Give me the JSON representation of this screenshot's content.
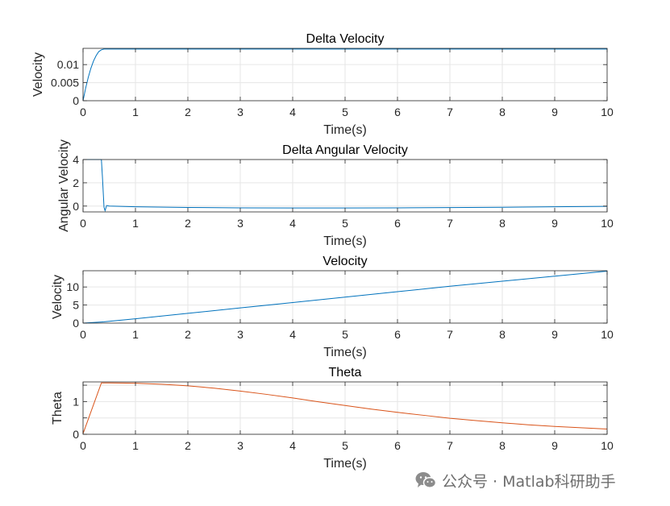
{
  "colors": {
    "blue": "#0072BD",
    "orange": "#D95319",
    "axis": "#262626",
    "grid": "#E6E6E6"
  },
  "watermark": {
    "icon": "wechat-icon",
    "text": "公众号 · Matlab科研助手"
  },
  "chart_data": [
    {
      "type": "line",
      "title": "Delta Velocity",
      "xlabel": "Time(s)",
      "ylabel": "Velocity",
      "xlim": [
        0,
        10
      ],
      "ylim": [
        0,
        0.0145
      ],
      "xticks": [
        0,
        1,
        2,
        3,
        4,
        5,
        6,
        7,
        8,
        9,
        10
      ],
      "xticklabels": [
        "0",
        "1",
        "2",
        "3",
        "4",
        "5",
        "6",
        "7",
        "8",
        "9",
        "10"
      ],
      "yticks": [
        0,
        0.005,
        0.01
      ],
      "yticklabels": [
        "0",
        "0.005",
        "0.01"
      ],
      "grid": true,
      "color": "#0072BD",
      "x": [
        0,
        0.05,
        0.1,
        0.15,
        0.2,
        0.25,
        0.3,
        0.35,
        0.4,
        1,
        2,
        3,
        4,
        5,
        6,
        7,
        8,
        9,
        10
      ],
      "y": [
        0,
        0.0035,
        0.0065,
        0.009,
        0.011,
        0.0125,
        0.0136,
        0.0141,
        0.0143,
        0.0143,
        0.0143,
        0.0143,
        0.0143,
        0.0143,
        0.0143,
        0.0143,
        0.0143,
        0.0143,
        0.0143
      ]
    },
    {
      "type": "line",
      "title": "Delta Angular Velocity",
      "xlabel": "Time(s)",
      "ylabel": "Angular Velocity",
      "xlim": [
        0,
        10
      ],
      "ylim": [
        -0.5,
        4
      ],
      "xticks": [
        0,
        1,
        2,
        3,
        4,
        5,
        6,
        7,
        8,
        9,
        10
      ],
      "xticklabels": [
        "0",
        "1",
        "2",
        "3",
        "4",
        "5",
        "6",
        "7",
        "8",
        "9",
        "10"
      ],
      "yticks": [
        0,
        2,
        4
      ],
      "yticklabels": [
        "0",
        "2",
        "4"
      ],
      "grid": true,
      "color": "#0072BD",
      "x": [
        0,
        0.35,
        0.37,
        0.4,
        0.42,
        0.45,
        0.5,
        1,
        2,
        3,
        4,
        5,
        6,
        7,
        8,
        9,
        10
      ],
      "y": [
        4,
        4,
        2.5,
        -0.1,
        -0.4,
        0.05,
        0.0,
        -0.06,
        -0.12,
        -0.15,
        -0.16,
        -0.16,
        -0.15,
        -0.13,
        -0.1,
        -0.06,
        -0.02
      ]
    },
    {
      "type": "line",
      "title": "Velocity",
      "xlabel": "Time(s)",
      "ylabel": "Velocity",
      "xlim": [
        0,
        10
      ],
      "ylim": [
        0,
        14.5
      ],
      "xticks": [
        0,
        1,
        2,
        3,
        4,
        5,
        6,
        7,
        8,
        9,
        10
      ],
      "xticklabels": [
        "0",
        "1",
        "2",
        "3",
        "4",
        "5",
        "6",
        "7",
        "8",
        "9",
        "10"
      ],
      "yticks": [
        0,
        5,
        10
      ],
      "yticklabels": [
        "0",
        "5",
        "10"
      ],
      "grid": true,
      "color": "#0072BD",
      "x": [
        0,
        0.4,
        1,
        2,
        3,
        4,
        5,
        6,
        7,
        8,
        9,
        10
      ],
      "y": [
        0,
        0.35,
        1.2,
        2.7,
        4.2,
        5.7,
        7.2,
        8.7,
        10.2,
        11.6,
        13.0,
        14.4
      ]
    },
    {
      "type": "line",
      "title": "Theta",
      "xlabel": "Time(s)",
      "ylabel": "Theta",
      "xlim": [
        0,
        10
      ],
      "ylim": [
        0,
        1.6
      ],
      "xticks": [
        0,
        1,
        2,
        3,
        4,
        5,
        6,
        7,
        8,
        9,
        10
      ],
      "xticklabels": [
        "0",
        "1",
        "2",
        "3",
        "4",
        "5",
        "6",
        "7",
        "8",
        "9",
        "10"
      ],
      "yticks": [
        0,
        0.5,
        1,
        1.5
      ],
      "yticklabels": [
        "0",
        "",
        "1",
        ""
      ],
      "grid": true,
      "color": "#D95319",
      "x": [
        0,
        0.35,
        0.5,
        1,
        1.5,
        2,
        2.5,
        3,
        3.5,
        4,
        4.5,
        5,
        5.5,
        6,
        6.5,
        7,
        7.5,
        8,
        8.5,
        9,
        9.5,
        10
      ],
      "y": [
        0.02,
        1.57,
        1.57,
        1.56,
        1.53,
        1.48,
        1.41,
        1.32,
        1.22,
        1.11,
        0.99,
        0.88,
        0.77,
        0.67,
        0.58,
        0.49,
        0.42,
        0.35,
        0.29,
        0.24,
        0.2,
        0.16
      ]
    }
  ]
}
